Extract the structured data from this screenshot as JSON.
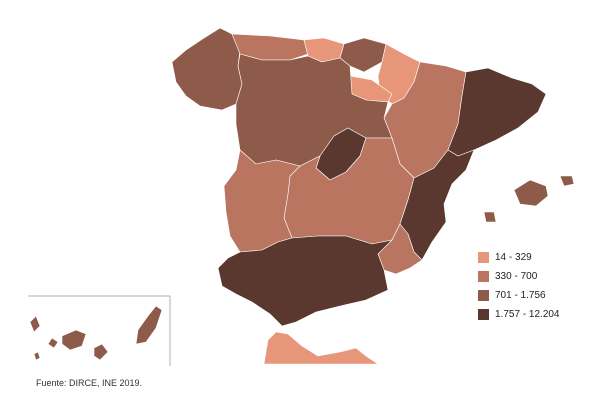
{
  "legend": {
    "classes": [
      {
        "label": "14 - 329",
        "color": "#E8967A"
      },
      {
        "label": "330 - 700",
        "color": "#B97560"
      },
      {
        "label": "701 - 1.756",
        "color": "#8E5A49"
      },
      {
        "label": "1.757 - 12.204",
        "color": "#5A3830"
      }
    ]
  },
  "source": "Fuente: DIRCE, INE 2019.",
  "regions": [
    {
      "name": "galicia",
      "class": 2
    },
    {
      "name": "asturias",
      "class": 1
    },
    {
      "name": "cantabria",
      "class": 0
    },
    {
      "name": "pais-vasco",
      "class": 2
    },
    {
      "name": "navarra",
      "class": 0
    },
    {
      "name": "la-rioja",
      "class": 0
    },
    {
      "name": "aragon",
      "class": 1
    },
    {
      "name": "cataluna",
      "class": 3
    },
    {
      "name": "castilla-y-leon",
      "class": 2
    },
    {
      "name": "madrid",
      "class": 3
    },
    {
      "name": "castilla-la-mancha",
      "class": 1
    },
    {
      "name": "extremadura",
      "class": 1
    },
    {
      "name": "comunidad-valenciana",
      "class": 3
    },
    {
      "name": "murcia",
      "class": 1
    },
    {
      "name": "andalucia",
      "class": 3
    },
    {
      "name": "baleares",
      "class": 2
    },
    {
      "name": "canarias",
      "class": 2
    },
    {
      "name": "ceuta-melilla",
      "class": 0
    }
  ]
}
